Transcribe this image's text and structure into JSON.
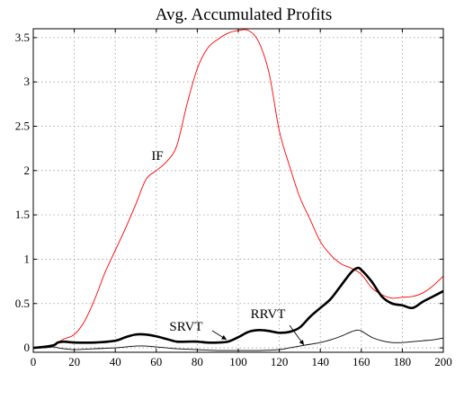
{
  "chart_data": {
    "type": "line",
    "title": "Avg. Accumulated Profits",
    "xlabel": "",
    "ylabel": "",
    "xlim": [
      0,
      200
    ],
    "ylim": [
      -0.05,
      3.6
    ],
    "x_ticks": [
      0,
      20,
      40,
      60,
      80,
      100,
      120,
      140,
      160,
      180,
      200
    ],
    "y_ticks": [
      0,
      0.5,
      1,
      1.5,
      2,
      2.5,
      3,
      3.5
    ],
    "x_tick_labels": [
      "0",
      "20",
      "40",
      "60",
      "80",
      "100",
      "120",
      "140",
      "160",
      "180",
      "200"
    ],
    "y_tick_labels": [
      "0",
      "0.5",
      "1",
      "1.5",
      "2",
      "2.5",
      "3",
      "3.5"
    ],
    "grid": true,
    "legend": "none",
    "series": [
      {
        "name": "IF",
        "color": "#ff0000",
        "width": "thin",
        "x": [
          0,
          5,
          10,
          12,
          15,
          20,
          25,
          30,
          35,
          40,
          45,
          50,
          55,
          60,
          65,
          70,
          75,
          80,
          85,
          90,
          95,
          100,
          105,
          110,
          115,
          120,
          125,
          130,
          135,
          140,
          145,
          150,
          155,
          160,
          165,
          170,
          175,
          180,
          185,
          190,
          195,
          200
        ],
        "y": [
          0.0,
          0.01,
          0.03,
          0.06,
          0.1,
          0.15,
          0.3,
          0.55,
          0.85,
          1.1,
          1.35,
          1.62,
          1.9,
          2.0,
          2.1,
          2.28,
          2.75,
          3.15,
          3.38,
          3.48,
          3.55,
          3.58,
          3.58,
          3.45,
          3.1,
          2.45,
          2.05,
          1.7,
          1.45,
          1.2,
          1.05,
          0.95,
          0.9,
          0.83,
          0.68,
          0.6,
          0.56,
          0.57,
          0.58,
          0.62,
          0.7,
          0.81
        ]
      },
      {
        "name": "SRVT",
        "color": "#000000",
        "width": "thick",
        "x": [
          0,
          5,
          10,
          12,
          15,
          20,
          30,
          40,
          45,
          50,
          55,
          60,
          65,
          70,
          75,
          80,
          85,
          90,
          95,
          100,
          105,
          110,
          115,
          120,
          125,
          130,
          135,
          140,
          145,
          150,
          155,
          158,
          160,
          165,
          170,
          175,
          180,
          185,
          190,
          195,
          200
        ],
        "y": [
          0.0,
          0.01,
          0.03,
          0.06,
          0.07,
          0.06,
          0.06,
          0.08,
          0.12,
          0.15,
          0.15,
          0.13,
          0.1,
          0.07,
          0.07,
          0.07,
          0.06,
          0.06,
          0.07,
          0.12,
          0.18,
          0.2,
          0.19,
          0.17,
          0.18,
          0.23,
          0.35,
          0.45,
          0.55,
          0.7,
          0.85,
          0.9,
          0.88,
          0.75,
          0.58,
          0.5,
          0.48,
          0.45,
          0.52,
          0.58,
          0.64
        ]
      },
      {
        "name": "RRVT",
        "color": "#000000",
        "width": "thin",
        "x": [
          0,
          5,
          10,
          12,
          15,
          20,
          30,
          40,
          45,
          50,
          55,
          60,
          65,
          70,
          80,
          90,
          100,
          110,
          120,
          125,
          130,
          135,
          140,
          145,
          150,
          155,
          158,
          160,
          165,
          170,
          175,
          180,
          185,
          190,
          195,
          200
        ],
        "y": [
          0.0,
          0.0,
          0.01,
          0.0,
          -0.01,
          -0.02,
          -0.01,
          0.0,
          0.01,
          0.02,
          0.02,
          0.01,
          0.0,
          -0.01,
          -0.02,
          -0.03,
          -0.03,
          -0.03,
          -0.02,
          0.0,
          0.02,
          0.04,
          0.06,
          0.09,
          0.13,
          0.18,
          0.2,
          0.19,
          0.12,
          0.08,
          0.06,
          0.06,
          0.07,
          0.08,
          0.09,
          0.11
        ]
      }
    ],
    "annotations": [
      {
        "text": "IF",
        "target_series": "IF"
      },
      {
        "text": "SRVT",
        "target_series": "SRVT",
        "arrow": true
      },
      {
        "text": "RRVT",
        "target_series": "RRVT",
        "arrow": true
      }
    ]
  }
}
